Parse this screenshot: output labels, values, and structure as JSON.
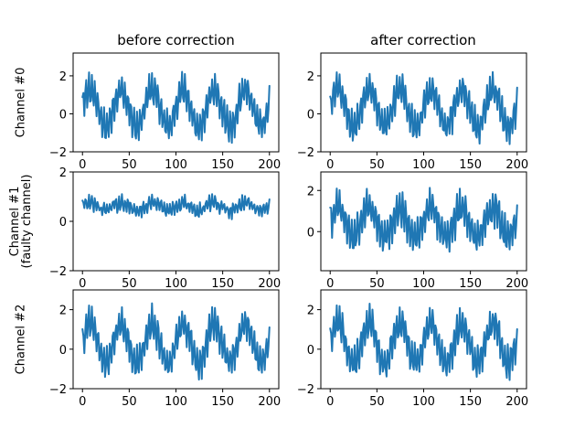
{
  "columns": {
    "before_label": "before correction",
    "after_label": "after correction"
  },
  "rows": [
    {
      "label_lines": [
        "Channel #0"
      ]
    },
    {
      "label_lines": [
        "Channel #1",
        "(faulty channel)"
      ]
    },
    {
      "label_lines": [
        "Channel #2"
      ]
    }
  ],
  "colors": {
    "series": "#1f77b4"
  },
  "chart_data": [
    {
      "type": "line",
      "row": 0,
      "column": "before correction",
      "grid": false,
      "xlim": [
        -10,
        210
      ],
      "ylim": [
        -2,
        3.2
      ],
      "xticks": [
        0,
        50,
        100,
        150,
        200
      ],
      "yticks": [
        -2,
        0,
        2
      ],
      "x": [
        0,
        200
      ],
      "n_points": 200,
      "series": [
        {
          "style": "noisy-sinusoid",
          "mean": 0.3,
          "period": 33,
          "amplitude_slow": 1.0,
          "amplitude_fast": 0.8,
          "fast_period": 3.2,
          "noise": 0.25,
          "approx_range": [
            -1.9,
            2.9
          ]
        }
      ]
    },
    {
      "type": "line",
      "row": 0,
      "column": "after correction",
      "grid": false,
      "xlim": [
        -10,
        210
      ],
      "ylim": [
        -2,
        3.2
      ],
      "xticks": [
        0,
        50,
        100,
        150,
        200
      ],
      "yticks": [
        -2,
        0,
        2
      ],
      "x": [
        0,
        200
      ],
      "n_points": 200,
      "series": [
        {
          "style": "noisy-sinusoid",
          "mean": 0.3,
          "period": 33,
          "amplitude_slow": 1.0,
          "amplitude_fast": 0.8,
          "fast_period": 3.2,
          "noise": 0.25,
          "approx_range": [
            -1.9,
            2.9
          ]
        }
      ]
    },
    {
      "type": "line",
      "row": 1,
      "column": "before correction",
      "grid": false,
      "xlim": [
        -10,
        210
      ],
      "ylim": [
        -2,
        2
      ],
      "xticks": [
        0,
        50,
        100,
        150,
        200
      ],
      "yticks": [
        -2,
        0,
        2
      ],
      "x": [
        0,
        200
      ],
      "n_points": 200,
      "series": [
        {
          "style": "noisy-sinusoid",
          "mean": 0.6,
          "period": 33,
          "amplitude_slow": 0.15,
          "amplitude_fast": 0.25,
          "fast_period": 3.2,
          "noise": 0.15,
          "approx_range": [
            0.0,
            1.1
          ]
        }
      ]
    },
    {
      "type": "line",
      "row": 1,
      "column": "after correction",
      "grid": false,
      "xlim": [
        -10,
        210
      ],
      "ylim": [
        -1.9,
        2.9
      ],
      "xticks": [
        0,
        50,
        100,
        150,
        200
      ],
      "yticks": [
        0,
        2
      ],
      "x": [
        0,
        200
      ],
      "n_points": 200,
      "series": [
        {
          "style": "noisy-sinusoid",
          "mean": 0.45,
          "period": 33,
          "amplitude_slow": 0.7,
          "amplitude_fast": 0.8,
          "fast_period": 3.2,
          "noise": 0.3,
          "approx_range": [
            -1.7,
            2.8
          ]
        }
      ]
    },
    {
      "type": "line",
      "row": 2,
      "column": "before correction",
      "grid": false,
      "xlim": [
        -10,
        210
      ],
      "ylim": [
        -2,
        3.0
      ],
      "xticks": [
        0,
        50,
        100,
        150,
        200
      ],
      "yticks": [
        -2,
        0,
        2
      ],
      "x": [
        0,
        200
      ],
      "n_points": 200,
      "series": [
        {
          "style": "noisy-sinusoid",
          "mean": 0.3,
          "period": 33,
          "amplitude_slow": 1.0,
          "amplitude_fast": 0.8,
          "fast_period": 3.2,
          "noise": 0.25,
          "approx_range": [
            -1.9,
            2.9
          ]
        }
      ]
    },
    {
      "type": "line",
      "row": 2,
      "column": "after correction",
      "grid": false,
      "xlim": [
        -10,
        210
      ],
      "ylim": [
        -2,
        3.0
      ],
      "xticks": [
        0,
        50,
        100,
        150,
        200
      ],
      "yticks": [
        -2,
        0,
        2
      ],
      "x": [
        0,
        200
      ],
      "n_points": 200,
      "series": [
        {
          "style": "noisy-sinusoid",
          "mean": 0.3,
          "period": 33,
          "amplitude_slow": 1.0,
          "amplitude_fast": 0.8,
          "fast_period": 3.2,
          "noise": 0.25,
          "approx_range": [
            -1.9,
            2.9
          ]
        }
      ]
    }
  ]
}
